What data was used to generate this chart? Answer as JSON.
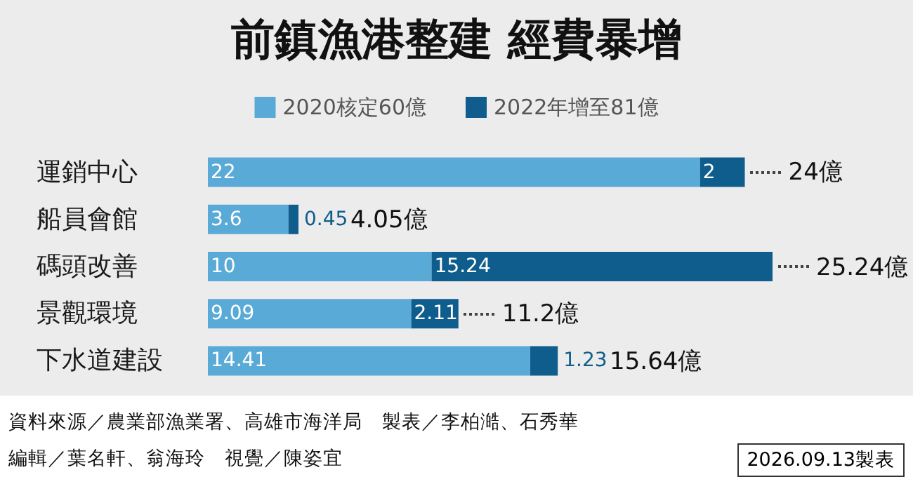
{
  "chart_data": {
    "type": "bar",
    "orientation": "horizontal",
    "stacked": true,
    "title": "前鎮漁港整建 經費暴增",
    "categories": [
      "運銷中心",
      "船員會館",
      "碼頭改善",
      "景觀環境",
      "下水道建設"
    ],
    "series": [
      {
        "name": "2020核定60億",
        "color": "#5aaad8",
        "values": [
          22,
          3.6,
          10,
          9.09,
          14.41
        ]
      },
      {
        "name": "2022年增至81億",
        "color": "#0f5d8c",
        "values": [
          2,
          0.45,
          15.24,
          2.11,
          1.23
        ]
      }
    ],
    "data_labels": true,
    "totals": [
      "24億",
      "4.05億",
      "25.24億",
      "11.2億",
      "15.64億"
    ],
    "legend": "top",
    "annotations": [
      "資料來源／農業部漁業署、高雄市海洋局　製表／李柏澔、石秀華",
      "編輯／葉名軒、翁海玲　視覺／陳姿宜",
      "2026.09.13製表"
    ]
  }
}
